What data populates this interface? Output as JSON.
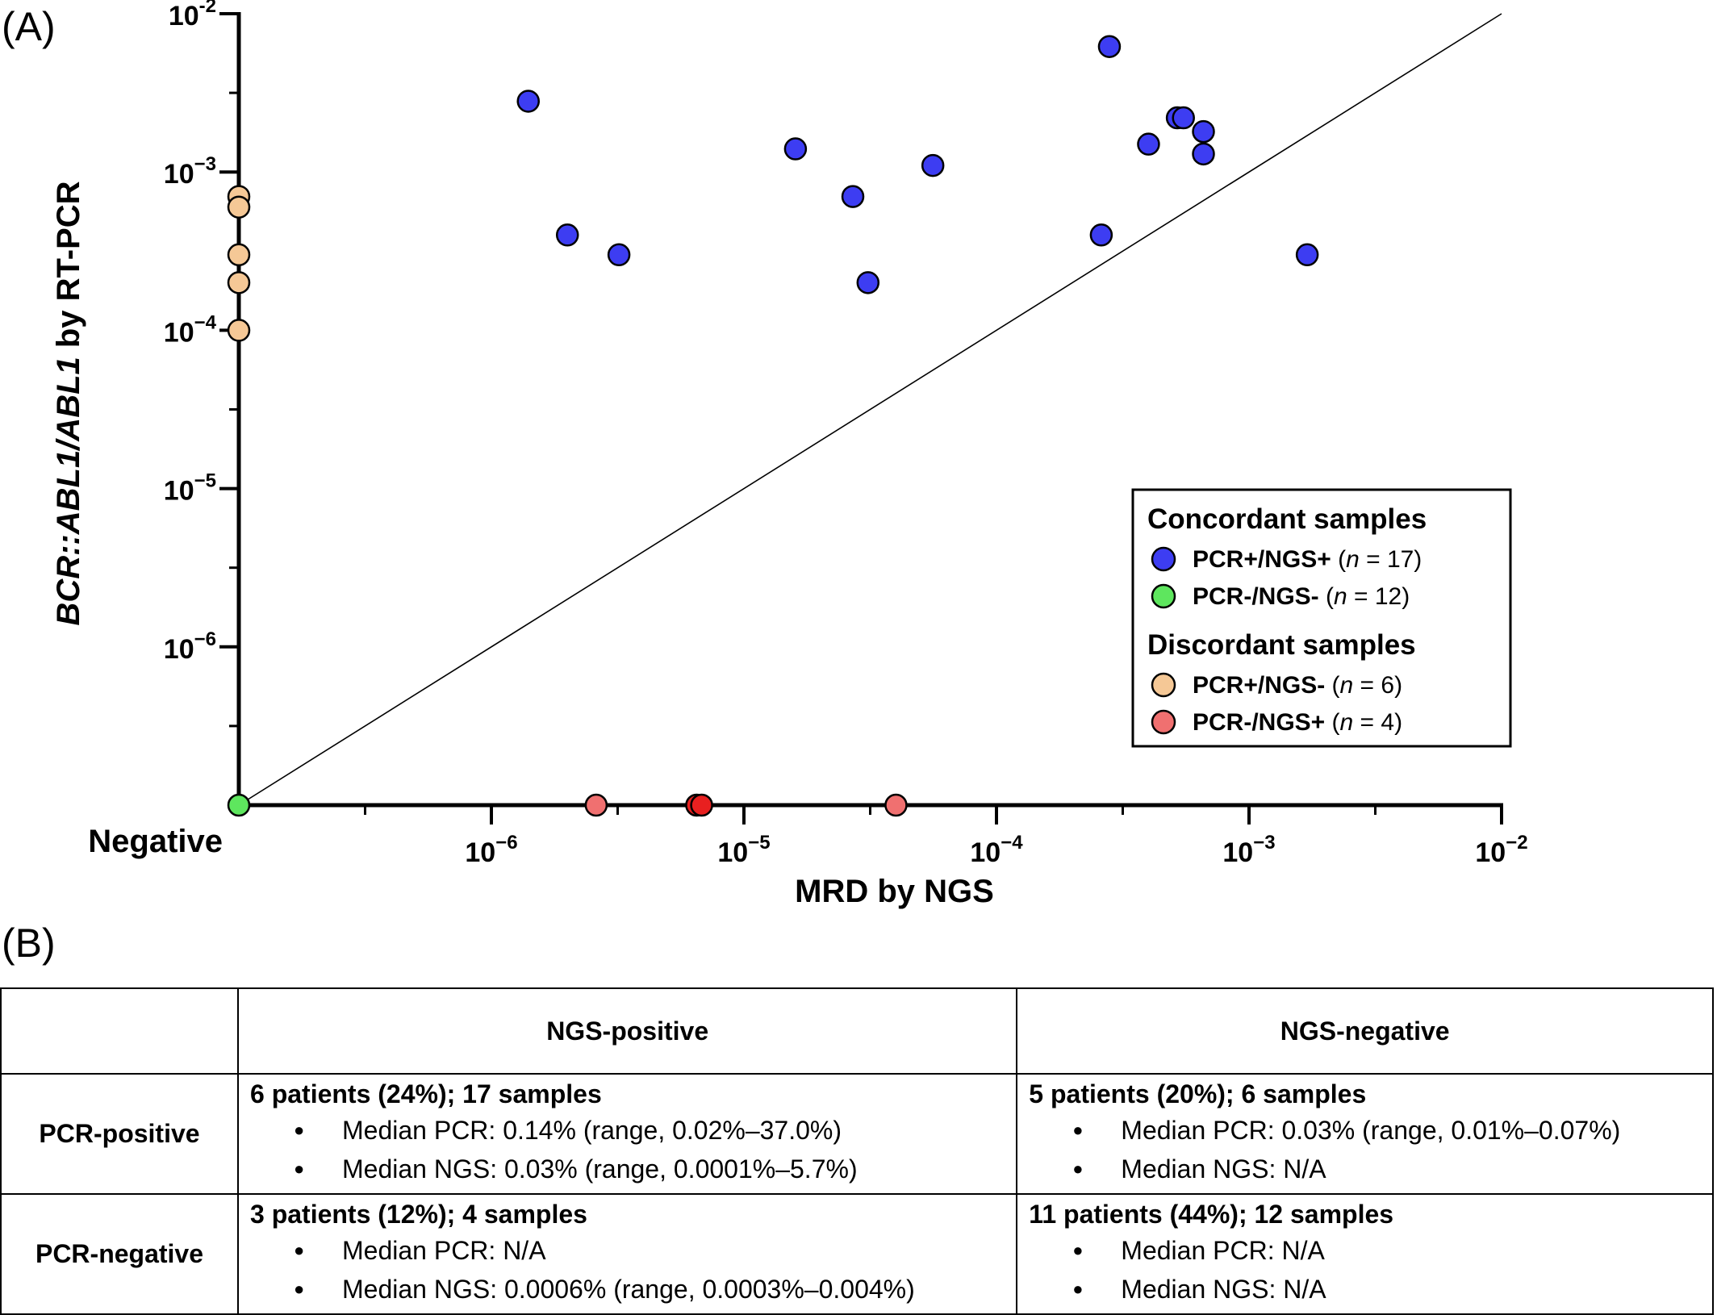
{
  "panel_a_label": "(A)",
  "panel_b_label": "(B)",
  "chart_data": {
    "type": "scatter",
    "title": "",
    "xlabel": "MRD by NGS",
    "ylabel_parts": [
      {
        "text": "BCR::ABL1/ABL1",
        "italic": true
      },
      {
        "text": " by RT-PCR",
        "italic": false
      }
    ],
    "x_scale": "log",
    "y_scale": "log",
    "xlim": [
      1e-07,
      0.01
    ],
    "ylim": [
      1e-07,
      0.01
    ],
    "negative_label": "Negative",
    "x_tick_labels": [
      {
        "value": 1e-06,
        "base": "10",
        "exp": "−6"
      },
      {
        "value": 1e-05,
        "base": "10",
        "exp": "−5"
      },
      {
        "value": 0.0001,
        "base": "10",
        "exp": "−4"
      },
      {
        "value": 0.001,
        "base": "10",
        "exp": "−3"
      },
      {
        "value": 0.01,
        "base": "10",
        "exp": "−2"
      }
    ],
    "y_tick_labels": [
      {
        "value": 1e-06,
        "base": "10",
        "exp": "−6"
      },
      {
        "value": 1e-05,
        "base": "10",
        "exp": "−5"
      },
      {
        "value": 0.0001,
        "base": "10",
        "exp": "−4"
      },
      {
        "value": 0.001,
        "base": "10",
        "exp": "−3"
      },
      {
        "value": 0.01,
        "base": "10",
        "exp": "-2"
      }
    ],
    "reference_line": {
      "from": [
        1e-07,
        1e-07
      ],
      "to": [
        0.01,
        0.01
      ]
    },
    "legend": {
      "placement": "center-right",
      "groups": [
        {
          "heading": "Concordant samples",
          "items": [
            0,
            1
          ]
        },
        {
          "heading": "Discordant samples",
          "items": [
            2,
            3
          ]
        }
      ]
    },
    "series": [
      {
        "name": "PCR+/NGS+",
        "n": "17",
        "color": "#3d3df2",
        "points": [
          {
            "x": 1.4e-06,
            "y": 0.0028
          },
          {
            "x": 2e-06,
            "y": 0.0004
          },
          {
            "x": 3.2e-06,
            "y": 0.0003
          },
          {
            "x": 1.6e-05,
            "y": 0.0014
          },
          {
            "x": 2.7e-05,
            "y": 0.0007
          },
          {
            "x": 3.1e-05,
            "y": 0.0002
          },
          {
            "x": 5.6e-05,
            "y": 0.0011
          },
          {
            "x": 0.00026,
            "y": 0.0004
          },
          {
            "x": 0.00028,
            "y": 0.0062
          },
          {
            "x": 0.0004,
            "y": 0.0015
          },
          {
            "x": 0.00052,
            "y": 0.0022
          },
          {
            "x": 0.00055,
            "y": 0.0022
          },
          {
            "x": 0.00066,
            "y": 0.0018
          },
          {
            "x": 0.00066,
            "y": 0.0013
          },
          {
            "x": 0.0017,
            "y": 0.0003
          }
        ]
      },
      {
        "name": "PCR-/NGS-",
        "n": "12",
        "color": "#5ee65e",
        "points": [
          {
            "x": "negative",
            "y": "negative"
          }
        ]
      },
      {
        "name": "PCR+/NGS-",
        "n": "6",
        "color": "#f5c896",
        "points": [
          {
            "x": "negative",
            "y": 0.0007
          },
          {
            "x": "negative",
            "y": 0.0006
          },
          {
            "x": "negative",
            "y": 0.0003
          },
          {
            "x": "negative",
            "y": 0.0002
          },
          {
            "x": "negative",
            "y": 0.0001
          }
        ]
      },
      {
        "name": "PCR-/NGS+",
        "n": "4",
        "color": "#f07070",
        "points": [
          {
            "x": 2.6e-06,
            "y": "negative"
          },
          {
            "x": 6.5e-06,
            "y": "negative",
            "color": "#e82020"
          },
          {
            "x": 6.8e-06,
            "y": "negative",
            "color": "#e82020"
          },
          {
            "x": 4e-05,
            "y": "negative"
          }
        ]
      }
    ]
  },
  "table": {
    "col_headers": [
      "NGS-positive",
      "NGS-negative"
    ],
    "rows": [
      {
        "header": "PCR-positive",
        "cells": [
          {
            "summary": "6 patients (24%); 17 samples",
            "items": [
              "Median PCR: 0.14% (range, 0.02%–37.0%)",
              "Median NGS: 0.03% (range, 0.0001%–5.7%)"
            ]
          },
          {
            "summary": "5 patients (20%); 6 samples",
            "items": [
              "Median PCR: 0.03% (range, 0.01%–0.07%)",
              "Median NGS: N/A"
            ]
          }
        ]
      },
      {
        "header": "PCR-negative",
        "cells": [
          {
            "summary": "3 patients (12%); 4 samples",
            "items": [
              "Median PCR: N/A",
              "Median NGS: 0.0006% (range, 0.0003%–0.004%)"
            ]
          },
          {
            "summary": "11 patients (44%); 12 samples",
            "items": [
              "Median PCR: N/A",
              "Median NGS: N/A"
            ]
          }
        ]
      }
    ]
  }
}
